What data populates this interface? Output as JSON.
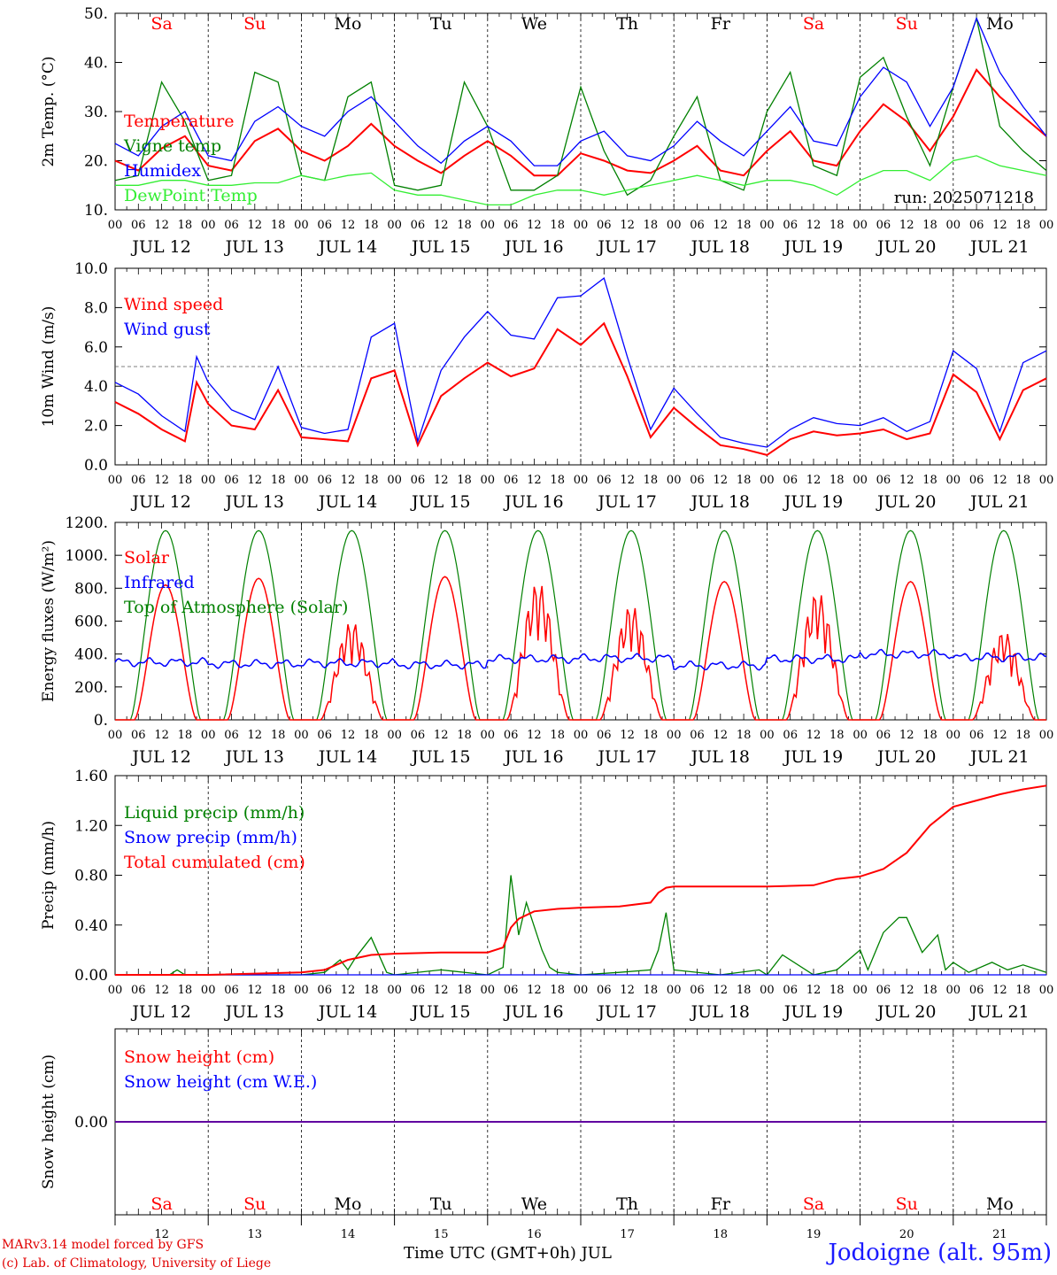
{
  "days": [
    "JUL 12",
    "JUL 13",
    "JUL 14",
    "JUL 15",
    "JUL 16",
    "JUL 17",
    "JUL 18",
    "JUL 19",
    "JUL 20",
    "JUL 21"
  ],
  "weekdays": [
    "Sa",
    "Su",
    "Mo",
    "Tu",
    "We",
    "Th",
    "Fr",
    "Sa",
    "Su",
    "Mo"
  ],
  "day_numbers": [
    "12",
    "13",
    "14",
    "15",
    "16",
    "17",
    "18",
    "19",
    "20",
    "21"
  ],
  "hour_ticks": [
    "00",
    "06",
    "12",
    "18"
  ],
  "end_tick": "00",
  "colors": {
    "red": "#ff0000",
    "green": "#008000",
    "blue": "#0000ff",
    "lightgreen": "#33ee33",
    "weekend": "#ff0000",
    "weekday": "#000000"
  },
  "footer": {
    "credit_line1": "MARv3.14 model forced by GFS",
    "credit_line2": "(c) Lab. of Climatology, University of Liege",
    "x_title": "Time UTC (GMT+0h) JUL",
    "station": "Jodoigne (alt. 95m)"
  },
  "chart_data": [
    {
      "type": "line",
      "ylabel": "2m Temp. (°C)",
      "ylim": [
        10,
        50
      ],
      "yticks": [
        10,
        20,
        30,
        40,
        50
      ],
      "ytick_labels": [
        "10.",
        "20.",
        "30.",
        "40.",
        "50."
      ],
      "annotation": "run: 2025071218",
      "x_unit": "hours since JUL 12 00 UTC",
      "series": [
        {
          "name": "Temperature",
          "color": "red",
          "x": [
            0,
            6,
            12,
            18,
            24,
            30,
            36,
            42,
            48,
            54,
            60,
            66,
            72,
            78,
            84,
            90,
            96,
            102,
            108,
            114,
            120,
            126,
            132,
            138,
            144,
            150,
            156,
            162,
            168,
            174,
            180,
            186,
            192,
            198,
            204,
            210,
            216,
            222,
            228,
            234,
            240
          ],
          "values": [
            20,
            18,
            22.5,
            25,
            19,
            18,
            24,
            26.5,
            22,
            20,
            23,
            27.5,
            23,
            20,
            17.5,
            21,
            24,
            21,
            17,
            17,
            21.5,
            20,
            18,
            17.5,
            20,
            23,
            18,
            17,
            22,
            26,
            20,
            19,
            26,
            31.5,
            28,
            22,
            29,
            38.5,
            33,
            29,
            25
          ]
        },
        {
          "name": "Vigne temp",
          "color": "green",
          "x": [
            0,
            6,
            12,
            18,
            24,
            30,
            36,
            42,
            48,
            54,
            60,
            66,
            72,
            78,
            84,
            90,
            96,
            102,
            108,
            114,
            120,
            126,
            132,
            138,
            144,
            150,
            156,
            162,
            168,
            174,
            180,
            186,
            192,
            198,
            204,
            210,
            216,
            222,
            228,
            234,
            240
          ],
          "values": [
            16,
            17,
            36,
            28,
            16,
            17,
            38,
            36,
            17,
            16,
            33,
            36,
            15,
            14,
            15,
            36,
            27,
            14,
            14,
            17,
            35,
            22,
            13,
            16,
            25,
            33,
            16,
            14,
            30,
            38,
            19,
            17,
            37,
            41,
            29,
            19,
            35,
            49,
            27,
            22,
            18
          ]
        },
        {
          "name": "Humidex",
          "color": "blue",
          "x": [
            0,
            6,
            12,
            18,
            24,
            30,
            36,
            42,
            48,
            54,
            60,
            66,
            72,
            78,
            84,
            90,
            96,
            102,
            108,
            114,
            120,
            126,
            132,
            138,
            144,
            150,
            156,
            162,
            168,
            174,
            180,
            186,
            192,
            198,
            204,
            210,
            216,
            222,
            228,
            234,
            240
          ],
          "values": [
            23.5,
            21,
            27,
            30,
            21,
            20,
            28,
            31,
            27,
            25,
            30,
            33,
            28,
            23,
            19.5,
            24,
            27,
            24,
            19,
            19,
            24,
            26,
            21,
            20,
            23,
            28,
            24,
            21,
            26,
            31,
            24,
            23,
            33,
            39,
            36,
            27,
            35,
            49,
            38,
            31,
            25
          ]
        },
        {
          "name": "DewPoint Temp",
          "color": "lightgreen",
          "x": [
            0,
            6,
            12,
            18,
            24,
            30,
            36,
            42,
            48,
            54,
            60,
            66,
            72,
            78,
            84,
            90,
            96,
            102,
            108,
            114,
            120,
            126,
            132,
            138,
            144,
            150,
            156,
            162,
            168,
            174,
            180,
            186,
            192,
            198,
            204,
            210,
            216,
            222,
            228,
            234,
            240
          ],
          "values": [
            15,
            15,
            16,
            16,
            15,
            15,
            15.5,
            15.5,
            17,
            16,
            17,
            17.5,
            14,
            13,
            13,
            12,
            11,
            11,
            13,
            14,
            14,
            13,
            14,
            15,
            16,
            17,
            16,
            15,
            16,
            16,
            15,
            13,
            16,
            18,
            18,
            16,
            20,
            21,
            19,
            18,
            17
          ]
        }
      ]
    },
    {
      "type": "line",
      "ylabel": "10m Wind (m/s)",
      "ylim": [
        0,
        10
      ],
      "yticks": [
        0,
        2,
        4,
        6,
        8,
        10
      ],
      "ytick_labels": [
        "0.0",
        "2.0",
        "4.0",
        "6.0",
        "8.0",
        "10.0"
      ],
      "reference_line": 5,
      "x_unit": "hours since JUL 12 00 UTC",
      "series": [
        {
          "name": "Wind speed",
          "color": "red",
          "x": [
            0,
            6,
            12,
            18,
            21,
            24,
            30,
            36,
            42,
            48,
            54,
            60,
            66,
            72,
            78,
            84,
            90,
            96,
            102,
            108,
            114,
            120,
            126,
            132,
            138,
            144,
            150,
            156,
            162,
            168,
            174,
            180,
            186,
            192,
            198,
            204,
            210,
            216,
            222,
            228,
            234,
            240
          ],
          "values": [
            3.2,
            2.6,
            1.8,
            1.2,
            4.2,
            3.1,
            2.0,
            1.8,
            3.8,
            1.4,
            1.3,
            1.2,
            4.4,
            4.8,
            1.0,
            3.5,
            4.4,
            5.2,
            4.5,
            4.9,
            6.9,
            6.1,
            7.2,
            4.5,
            1.4,
            2.9,
            1.9,
            1.0,
            0.8,
            0.5,
            1.3,
            1.7,
            1.5,
            1.6,
            1.8,
            1.3,
            1.6,
            4.6,
            3.7,
            1.3,
            3.8,
            4.4
          ]
        },
        {
          "name": "Wind gust",
          "color": "blue",
          "x": [
            0,
            6,
            12,
            18,
            21,
            24,
            30,
            36,
            42,
            48,
            54,
            60,
            66,
            72,
            78,
            84,
            90,
            96,
            102,
            108,
            114,
            120,
            126,
            132,
            138,
            144,
            150,
            156,
            162,
            168,
            174,
            180,
            186,
            192,
            198,
            204,
            210,
            216,
            222,
            228,
            234,
            240
          ],
          "values": [
            4.2,
            3.6,
            2.5,
            1.7,
            5.5,
            4.2,
            2.8,
            2.3,
            5.0,
            1.9,
            1.6,
            1.8,
            6.5,
            7.2,
            1.2,
            4.8,
            6.5,
            7.8,
            6.6,
            6.4,
            8.5,
            8.6,
            9.5,
            5.5,
            1.8,
            3.9,
            2.6,
            1.4,
            1.1,
            0.9,
            1.8,
            2.4,
            2.1,
            2.0,
            2.4,
            1.7,
            2.2,
            5.8,
            4.9,
            1.7,
            5.2,
            5.8
          ]
        }
      ]
    },
    {
      "type": "line",
      "ylabel": "Energy fluxes (W/m²)",
      "ylim": [
        0,
        1200
      ],
      "yticks": [
        0,
        200,
        400,
        600,
        800,
        1000,
        1200
      ],
      "ytick_labels": [
        "0.",
        "200.",
        "400.",
        "600.",
        "800.",
        "1000.",
        "1200."
      ],
      "x_unit": "hours since JUL 12 00 UTC",
      "daily_peak_solar": [
        820,
        860,
        600,
        870,
        840,
        700,
        840,
        780,
        840,
        540
      ],
      "daily_peak_toa": 1150,
      "infrared_daily": [
        350,
        340,
        345,
        335,
        370,
        375,
        330,
        370,
        400,
        380
      ],
      "series": [
        {
          "name": "Solar",
          "color": "red"
        },
        {
          "name": "Infrared",
          "color": "blue"
        },
        {
          "name": "Top of Atmosphere (Solar)",
          "color": "green"
        }
      ]
    },
    {
      "type": "line",
      "ylabel": "Precip (mm/h)",
      "ylim": [
        0,
        1.6
      ],
      "yticks": [
        0,
        0.4,
        0.8,
        1.2,
        1.6
      ],
      "ytick_labels": [
        "0.00",
        "0.40",
        "0.80",
        "1.20",
        "1.60"
      ],
      "x_unit": "hours since JUL 12 00 UTC",
      "series": [
        {
          "name": "Liquid precip (mm/h)",
          "color": "green",
          "x": [
            0,
            14,
            16,
            18,
            48,
            54,
            58,
            60,
            62,
            66,
            70,
            72,
            84,
            96,
            100,
            102,
            104,
            106,
            110,
            112,
            114,
            120,
            130,
            138,
            140,
            142,
            144,
            156,
            166,
            168,
            172,
            180,
            186,
            192,
            194,
            198,
            202,
            204,
            208,
            212,
            214,
            216,
            220,
            226,
            230,
            234,
            240
          ],
          "values": [
            0,
            0,
            0.04,
            0,
            0,
            0.02,
            0.12,
            0.04,
            0.14,
            0.3,
            0.02,
            0,
            0.04,
            0,
            0.06,
            0.8,
            0.32,
            0.58,
            0.2,
            0.06,
            0.02,
            0,
            0.02,
            0.04,
            0.2,
            0.5,
            0.04,
            0,
            0.04,
            0,
            0.16,
            0,
            0.04,
            0.2,
            0.04,
            0.34,
            0.46,
            0.46,
            0.18,
            0.32,
            0.04,
            0.1,
            0.02,
            0.1,
            0.04,
            0.08,
            0.02
          ]
        },
        {
          "name": "Snow precip (mm/h)",
          "color": "blue",
          "x": [
            0,
            240
          ],
          "values": [
            0,
            0
          ]
        },
        {
          "name": "Total cumulated (cm)",
          "color": "red",
          "x": [
            0,
            24,
            48,
            54,
            60,
            66,
            72,
            84,
            96,
            100,
            102,
            104,
            108,
            114,
            120,
            130,
            138,
            140,
            142,
            144,
            156,
            168,
            180,
            186,
            192,
            198,
            204,
            210,
            216,
            222,
            228,
            234,
            240
          ],
          "values": [
            0,
            0,
            0.02,
            0.04,
            0.12,
            0.16,
            0.17,
            0.18,
            0.18,
            0.22,
            0.38,
            0.45,
            0.51,
            0.53,
            0.54,
            0.55,
            0.58,
            0.66,
            0.7,
            0.71,
            0.71,
            0.71,
            0.72,
            0.77,
            0.79,
            0.85,
            0.98,
            1.2,
            1.35,
            1.4,
            1.45,
            1.49,
            1.52
          ]
        }
      ]
    },
    {
      "type": "line",
      "ylabel": "Snow height (cm)",
      "ylim": [
        -1,
        1
      ],
      "yticks": [
        0
      ],
      "ytick_labels": [
        "0.00"
      ],
      "x_unit": "hours since JUL 12 00 UTC",
      "series": [
        {
          "name": "Snow height (cm)",
          "color": "red",
          "x": [
            0,
            240
          ],
          "values": [
            0,
            0
          ]
        },
        {
          "name": "Snow height (cm W.E.)",
          "color": "blue",
          "x": [
            0,
            240
          ],
          "values": [
            0,
            0
          ]
        }
      ]
    }
  ]
}
